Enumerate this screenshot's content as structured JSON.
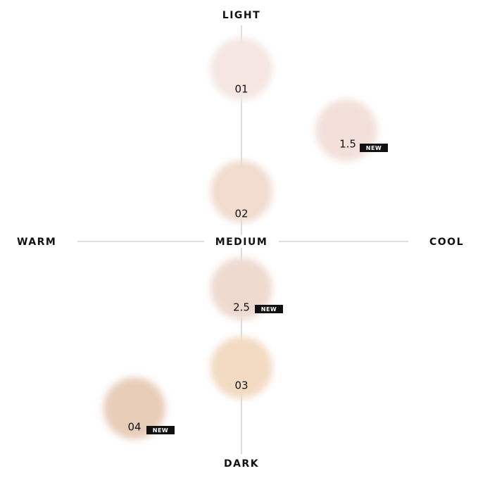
{
  "axes": {
    "top": "LIGHT",
    "bottom": "DARK",
    "left": "WARM",
    "right": "COOL",
    "center": "MEDIUM"
  },
  "shades": [
    {
      "label": "01"
    },
    {
      "label": "1.5",
      "badge": "NEW"
    },
    {
      "label": "02"
    },
    {
      "label": "2.5",
      "badge": "NEW"
    },
    {
      "label": "03"
    },
    {
      "label": "04",
      "badge": "NEW"
    }
  ]
}
